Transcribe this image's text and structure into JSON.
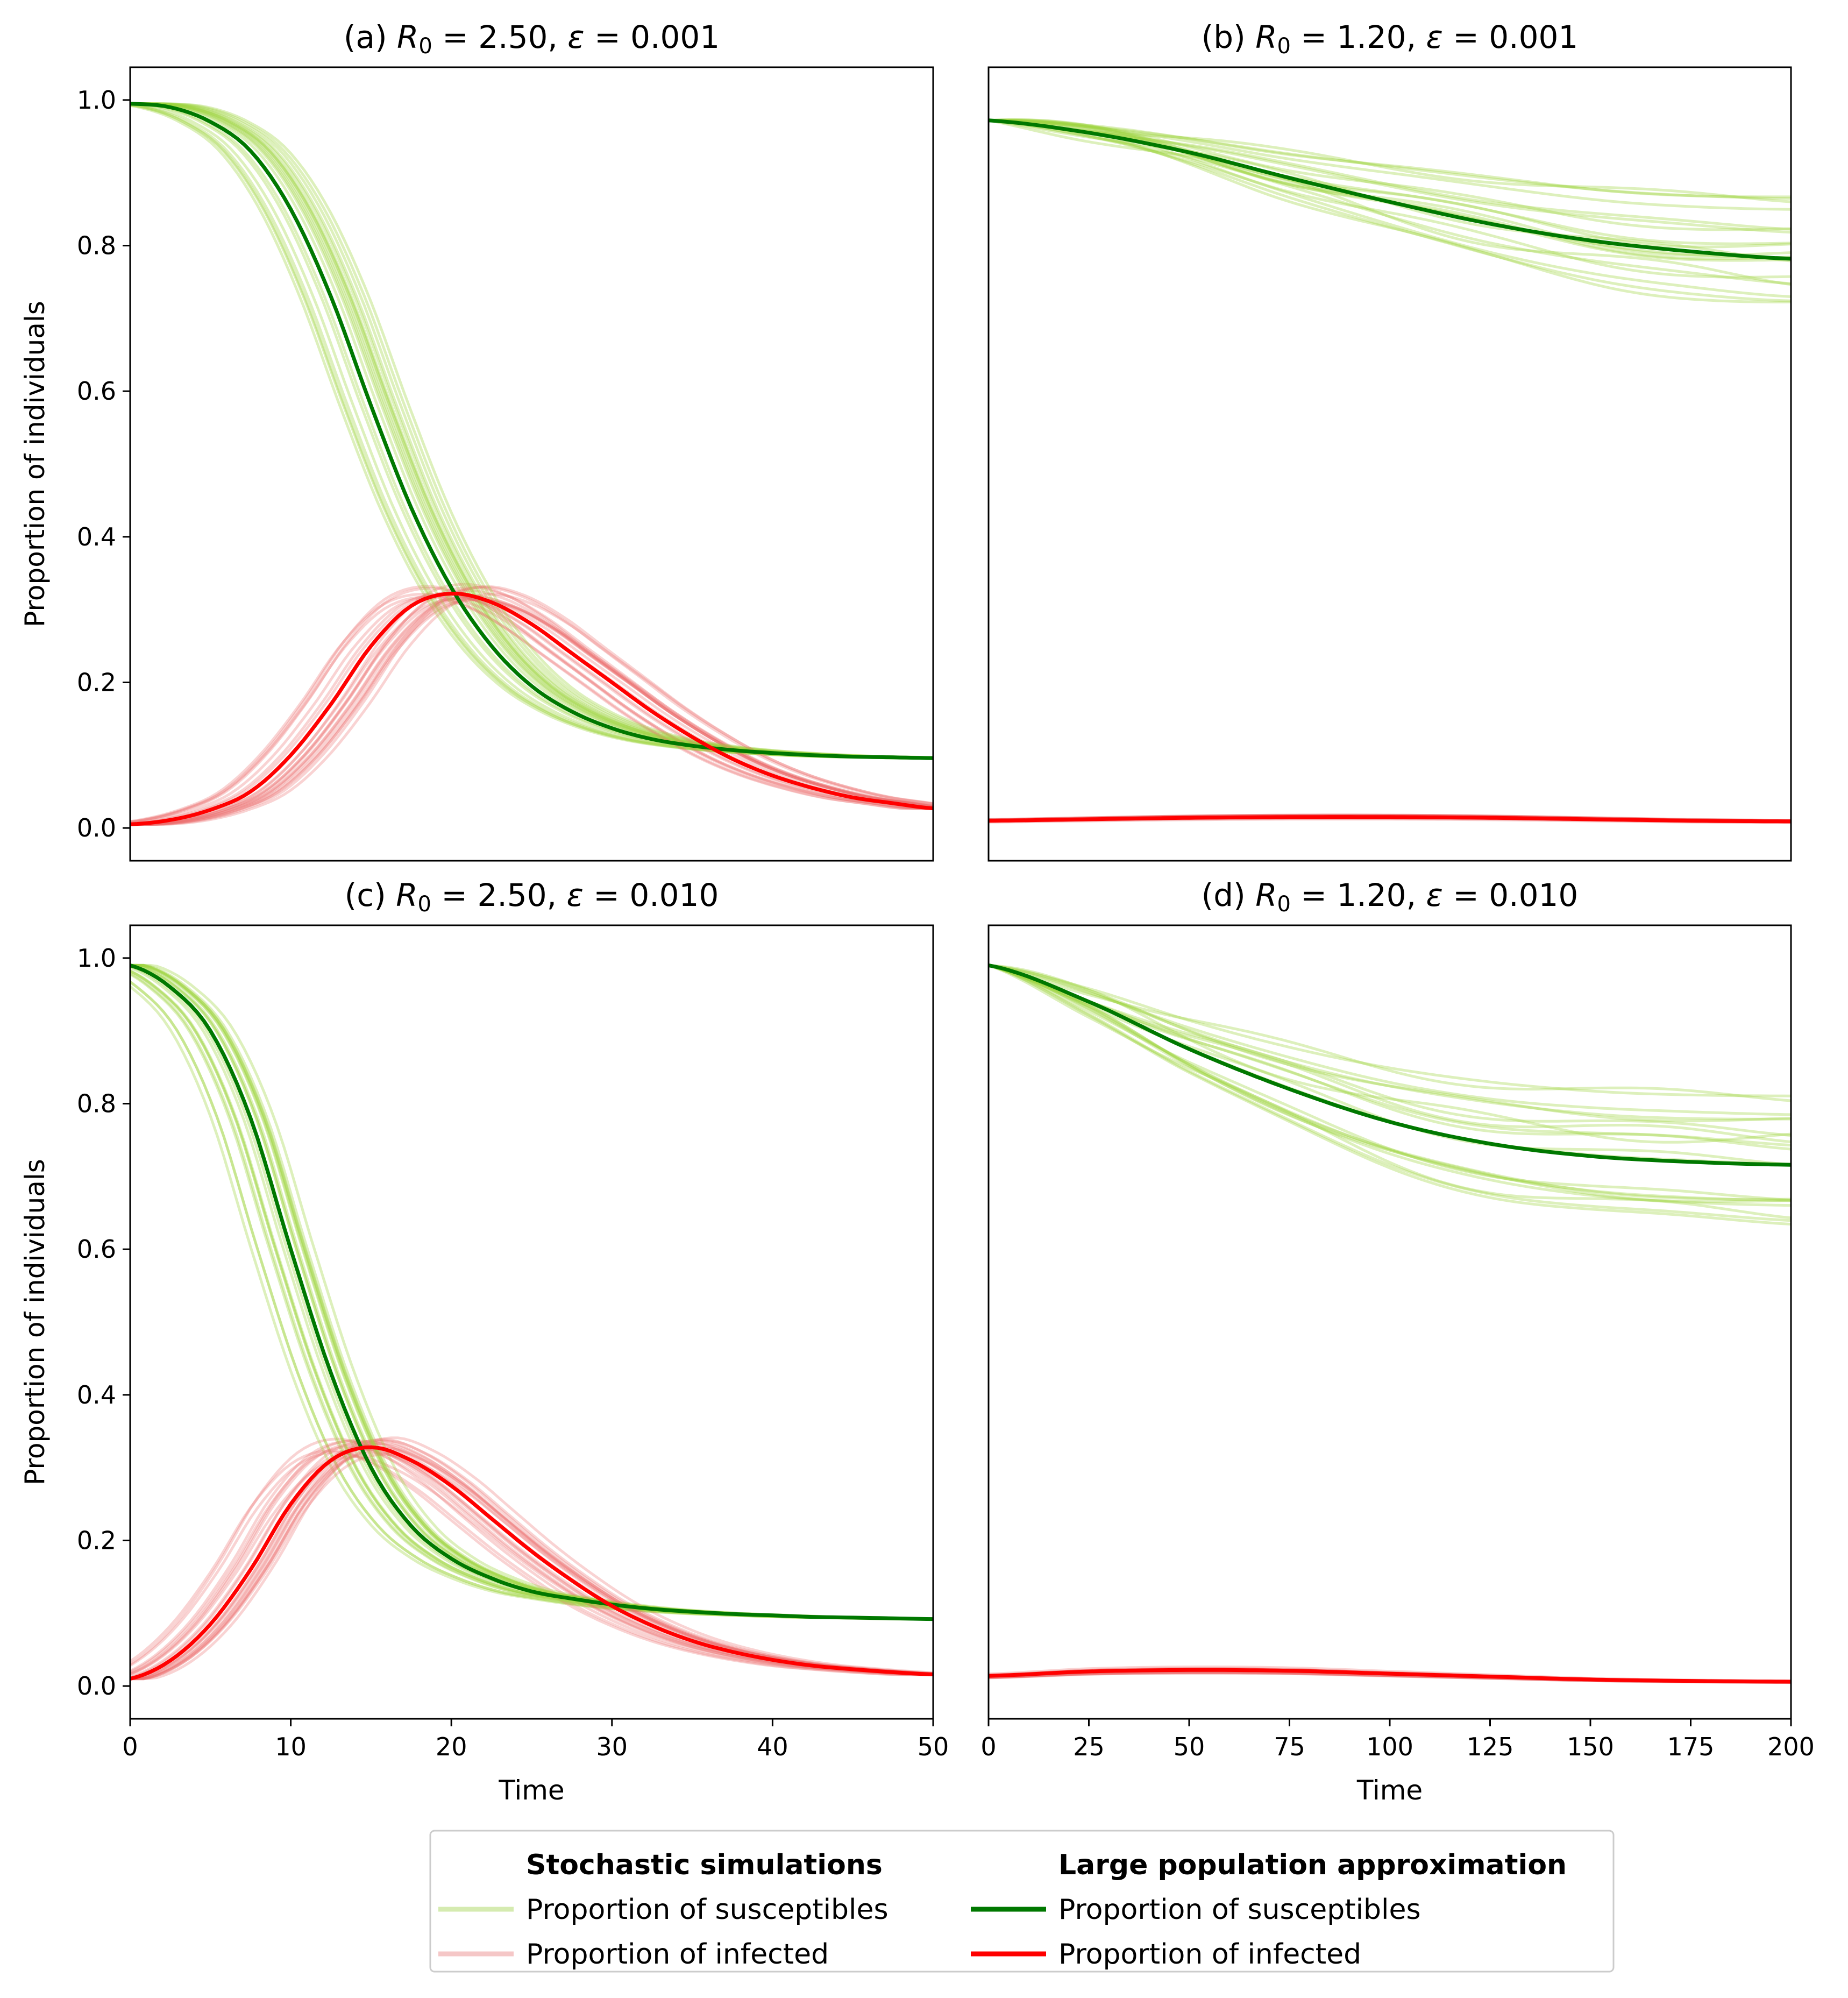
{
  "chart_data": [
    {
      "id": "a",
      "type": "line",
      "title_prefix": "(a) ",
      "title_r0": "R",
      "title_r0_sub": "0",
      "title_r0_value": " = 2.50, ",
      "title_eps": "ε",
      "title_eps_value": " = 0.001",
      "xlabel": "",
      "ylabel": "Proportion of individuals",
      "xlim": [
        0,
        50
      ],
      "ylim": [
        -0.045,
        1.045
      ],
      "xticks": [],
      "yticks": [
        "0.0",
        "0.2",
        "0.4",
        "0.6",
        "0.8",
        "1.0"
      ],
      "n_stochastic_runs": 20,
      "series": [
        {
          "name": "Proportion of susceptibles",
          "kind": "approximation",
          "color": "#007800",
          "x": [
            0,
            2.5,
            5,
            7.5,
            10,
            12.5,
            15,
            17.5,
            20,
            22.5,
            25,
            27.5,
            30,
            32.5,
            35,
            37.5,
            40,
            42.5,
            45,
            47.5,
            50
          ],
          "values": [
            0.995,
            0.99,
            0.97,
            0.93,
            0.85,
            0.73,
            0.58,
            0.44,
            0.33,
            0.25,
            0.195,
            0.16,
            0.137,
            0.122,
            0.113,
            0.107,
            0.103,
            0.1,
            0.098,
            0.097,
            0.096
          ]
        },
        {
          "name": "Proportion of infected",
          "kind": "approximation",
          "color": "#ff0000",
          "x": [
            0,
            2.5,
            5,
            7.5,
            10,
            12.5,
            15,
            17.5,
            20,
            22.5,
            25,
            27.5,
            30,
            32.5,
            35,
            37.5,
            40,
            42.5,
            45,
            47.5,
            50
          ],
          "values": [
            0.005,
            0.011,
            0.025,
            0.05,
            0.1,
            0.17,
            0.25,
            0.305,
            0.322,
            0.31,
            0.28,
            0.24,
            0.2,
            0.16,
            0.125,
            0.095,
            0.072,
            0.055,
            0.042,
            0.034,
            0.027
          ]
        }
      ]
    },
    {
      "id": "b",
      "type": "line",
      "title_prefix": "(b) ",
      "title_r0": "R",
      "title_r0_sub": "0",
      "title_r0_value": " = 1.20, ",
      "title_eps": "ε",
      "title_eps_value": " = 0.001",
      "xlabel": "",
      "ylabel": "",
      "xlim": [
        0,
        200
      ],
      "ylim": [
        -0.045,
        1.045
      ],
      "xticks": [],
      "yticks": [],
      "n_stochastic_runs": 20,
      "series": [
        {
          "name": "Proportion of susceptibles",
          "kind": "approximation",
          "color": "#007800",
          "x": [
            0,
            25,
            50,
            75,
            100,
            125,
            150,
            175,
            200
          ],
          "values": [
            0.972,
            0.955,
            0.928,
            0.893,
            0.86,
            0.83,
            0.807,
            0.792,
            0.782
          ]
        },
        {
          "name": "Proportion of infected",
          "kind": "approximation",
          "color": "#ff0000",
          "x": [
            0,
            25,
            50,
            75,
            100,
            125,
            150,
            175,
            200
          ],
          "values": [
            0.01,
            0.012,
            0.014,
            0.015,
            0.015,
            0.014,
            0.012,
            0.01,
            0.009
          ]
        }
      ]
    },
    {
      "id": "c",
      "type": "line",
      "title_prefix": "(c) ",
      "title_r0": "R",
      "title_r0_sub": "0",
      "title_r0_value": " = 2.50, ",
      "title_eps": "ε",
      "title_eps_value": " = 0.010",
      "xlabel": "Time",
      "ylabel": "Proportion of individuals",
      "xlim": [
        0,
        50
      ],
      "ylim": [
        -0.045,
        1.045
      ],
      "xticks": [
        "0",
        "10",
        "20",
        "30",
        "40",
        "50"
      ],
      "yticks": [
        "0.0",
        "0.2",
        "0.4",
        "0.6",
        "0.8",
        "1.0"
      ],
      "n_stochastic_runs": 20,
      "series": [
        {
          "name": "Proportion of susceptibles",
          "kind": "approximation",
          "color": "#007800",
          "x": [
            0,
            2.5,
            5,
            7.5,
            10,
            12.5,
            15,
            17.5,
            20,
            22.5,
            25,
            27.5,
            30,
            32.5,
            35,
            37.5,
            40,
            42.5,
            45,
            47.5,
            50
          ],
          "values": [
            0.99,
            0.96,
            0.9,
            0.78,
            0.6,
            0.43,
            0.3,
            0.22,
            0.175,
            0.148,
            0.13,
            0.12,
            0.112,
            0.106,
            0.102,
            0.099,
            0.097,
            0.095,
            0.094,
            0.093,
            0.092
          ]
        },
        {
          "name": "Proportion of infected",
          "kind": "approximation",
          "color": "#ff0000",
          "x": [
            0,
            2.5,
            5,
            7.5,
            10,
            12.5,
            15,
            17.5,
            20,
            22.5,
            25,
            27.5,
            30,
            32.5,
            35,
            37.5,
            40,
            42.5,
            45,
            47.5,
            50
          ],
          "values": [
            0.01,
            0.035,
            0.085,
            0.16,
            0.25,
            0.31,
            0.328,
            0.31,
            0.275,
            0.23,
            0.185,
            0.145,
            0.11,
            0.083,
            0.062,
            0.047,
            0.036,
            0.028,
            0.023,
            0.019,
            0.016
          ]
        }
      ]
    },
    {
      "id": "d",
      "type": "line",
      "title_prefix": "(d) ",
      "title_r0": "R",
      "title_r0_sub": "0",
      "title_r0_value": " = 1.20, ",
      "title_eps": "ε",
      "title_eps_value": " = 0.010",
      "xlabel": "Time",
      "ylabel": "",
      "xlim": [
        0,
        200
      ],
      "ylim": [
        -0.045,
        1.045
      ],
      "xticks": [
        "0",
        "25",
        "50",
        "75",
        "100",
        "125",
        "150",
        "175",
        "200"
      ],
      "yticks": [],
      "n_stochastic_runs": 20,
      "series": [
        {
          "name": "Proportion of susceptibles",
          "kind": "approximation",
          "color": "#007800",
          "x": [
            0,
            25,
            50,
            75,
            100,
            125,
            150,
            175,
            200
          ],
          "values": [
            0.99,
            0.94,
            0.875,
            0.82,
            0.775,
            0.745,
            0.728,
            0.72,
            0.716
          ]
        },
        {
          "name": "Proportion of infected",
          "kind": "approximation",
          "color": "#ff0000",
          "x": [
            0,
            25,
            50,
            75,
            100,
            125,
            150,
            175,
            200
          ],
          "values": [
            0.014,
            0.02,
            0.022,
            0.021,
            0.017,
            0.013,
            0.009,
            0.007,
            0.006
          ]
        }
      ]
    }
  ],
  "legend": {
    "stochastic_heading": "Stochastic simulations",
    "approx_heading": "Large population approximation",
    "stoch_susceptible_label": "Proportion of susceptibles",
    "stoch_infected_label": "Proportion of infected",
    "approx_susceptible_label": "Proportion of susceptibles",
    "approx_infected_label": "Proportion of infected",
    "colors": {
      "stoch_susceptible": "#d5ebb0",
      "stoch_infected": "#f5c7c7",
      "approx_susceptible": "#007800",
      "approx_infected": "#ff0000",
      "stochastic_run_susceptible": "#9ed33f",
      "stochastic_run_infected": "#ec6e6e"
    }
  }
}
